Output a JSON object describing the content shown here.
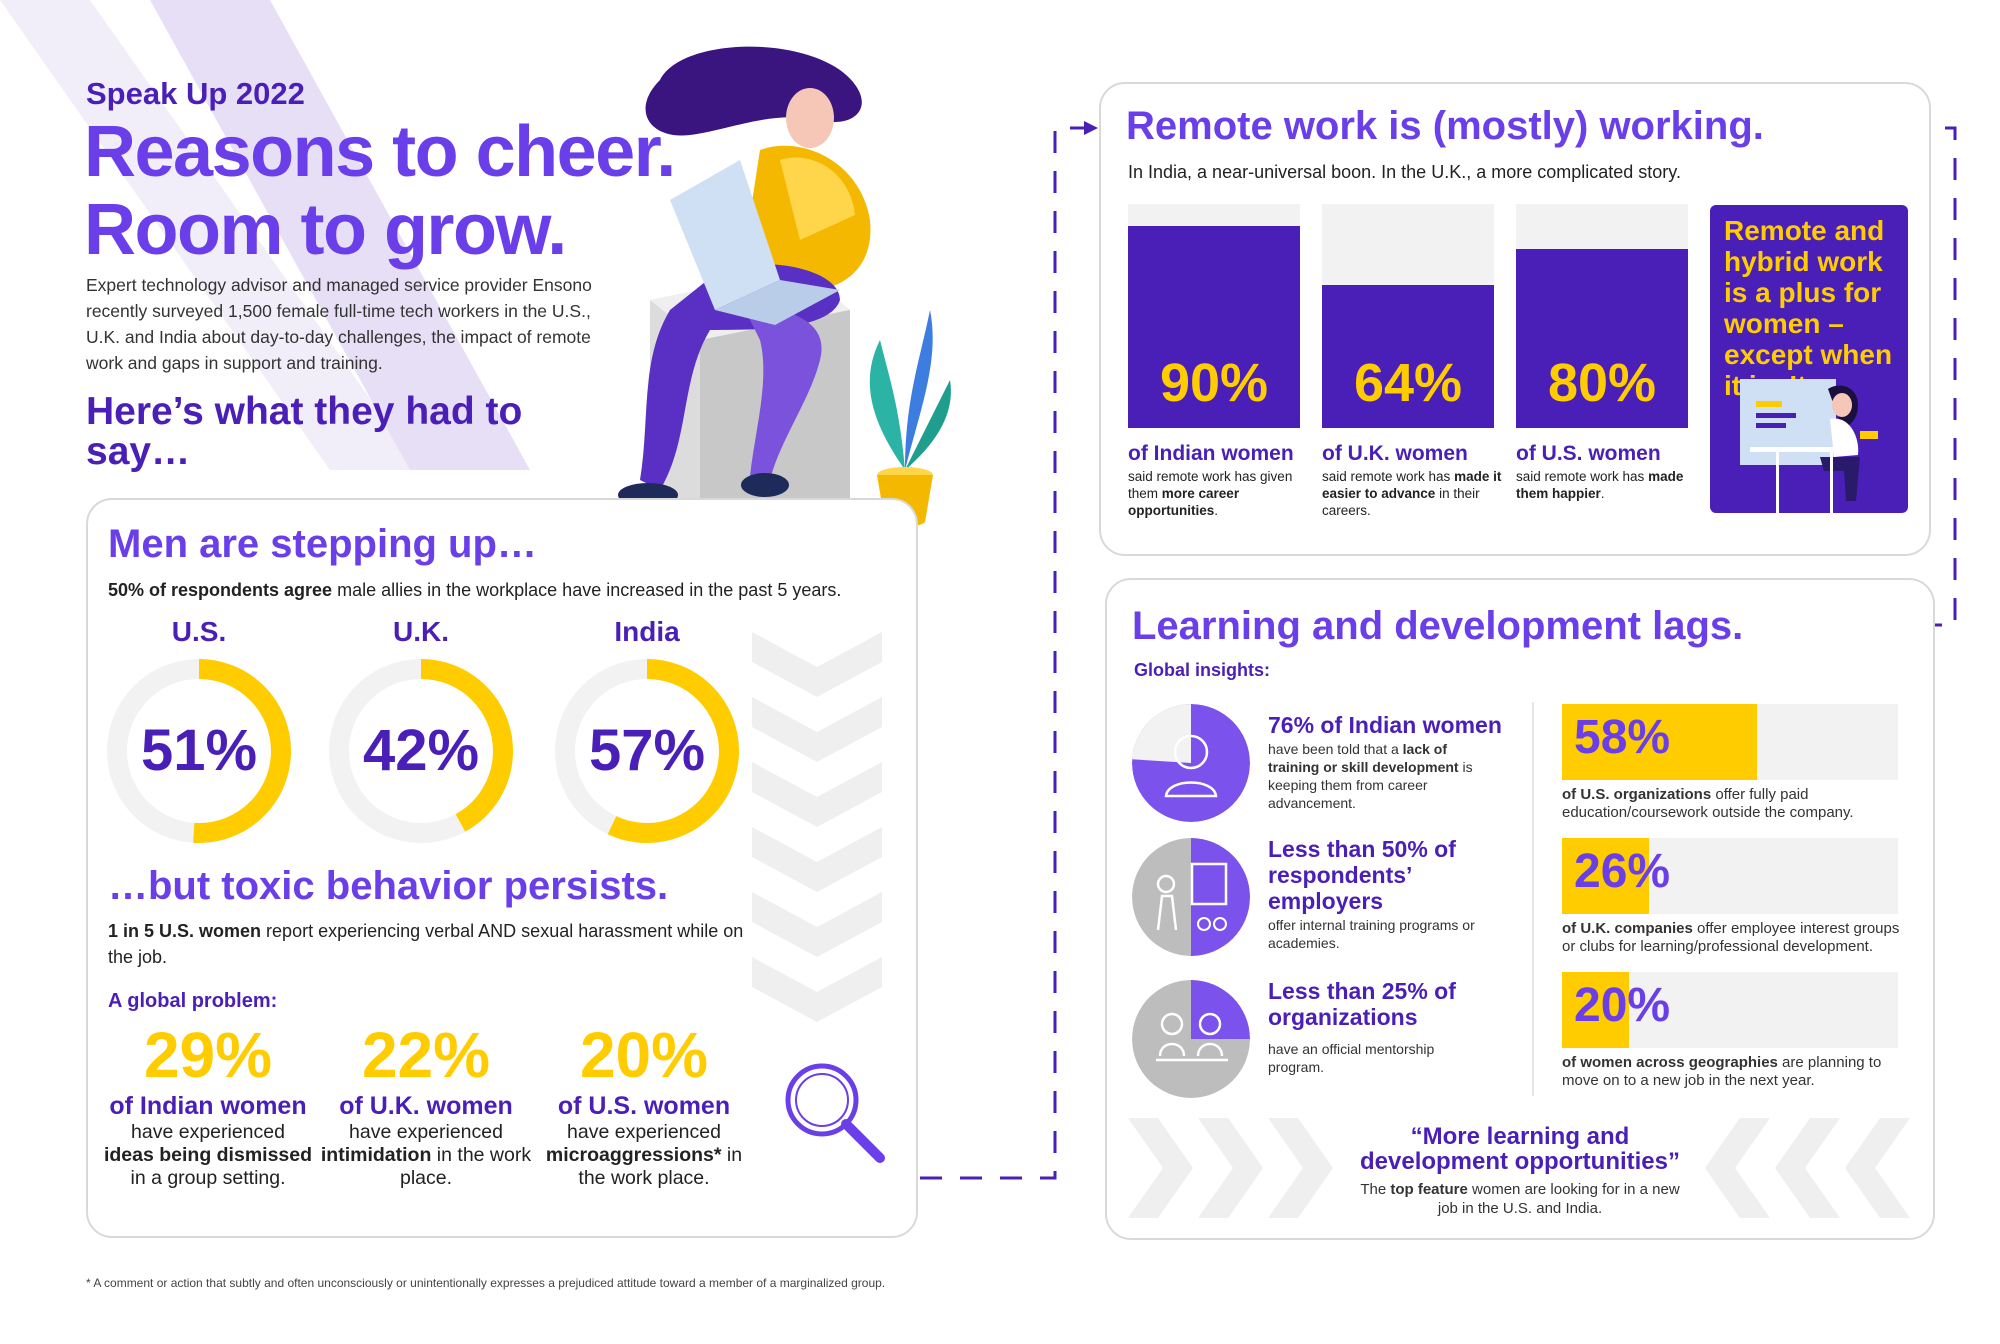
{
  "header": {
    "eyebrow": "Speak Up 2022",
    "headline_1": "Reasons to cheer.",
    "headline_2": "Room to grow.",
    "intro": "Expert technology advisor and managed service provider Ensono recently surveyed 1,500 female full-time tech workers in the U.S., U.K. and India about day-to-day challenges, the impact of remote work and gaps in support and training.",
    "subhead": "Here’s what they had to say…"
  },
  "men": {
    "title": "Men are stepping up…",
    "lead_bold": "50% of respondents agree",
    "lead_rest": " male allies in the workplace have increased in the past 5 years.",
    "donuts": [
      {
        "label": "U.S.",
        "value": "51%",
        "fraction": 0.51
      },
      {
        "label": "U.K.",
        "value": "42%",
        "fraction": 0.42
      },
      {
        "label": "India",
        "value": "57%",
        "fraction": 0.57
      }
    ]
  },
  "toxic": {
    "title": "…but toxic behavior persists.",
    "lead_bold": "1 in 5 U.S. women",
    "lead_rest": " report experiencing verbal AND sexual harassment while on the job.",
    "global_label": "A global problem:",
    "stats": [
      {
        "value": "29%",
        "who": "of Indian women",
        "pre": "have experienced",
        "bold": "ideas being dismissed",
        "post": "in a group setting."
      },
      {
        "value": "22%",
        "who": "of U.K. women",
        "pre": "have experienced",
        "bold": "intimidation",
        "post": " in the work place."
      },
      {
        "value": "20%",
        "who": "of U.S. women",
        "pre": "have experienced",
        "bold": "microaggressions*",
        "post": " in the work place."
      }
    ]
  },
  "remote": {
    "title": "Remote work is (mostly) working.",
    "sub": "In India, a near-universal boon. In the U.K., a more complicated story.",
    "bars": [
      {
        "value": "90%",
        "fraction": 0.9,
        "who": "of Indian women",
        "pre": "said remote work has given them ",
        "bold": "more career opportunities",
        "post": "."
      },
      {
        "value": "64%",
        "fraction": 0.64,
        "who": "of U.K. women",
        "pre": "said remote work has ",
        "bold": "made it easier to advance",
        "post": " in their careers."
      },
      {
        "value": "80%",
        "fraction": 0.8,
        "who": "of U.S. women",
        "pre": "said remote work has ",
        "bold": "made them happier",
        "post": "."
      }
    ],
    "callout": "Remote and hybrid work is a plus for women – except when it isn’t."
  },
  "learning": {
    "title": "Learning and development lags.",
    "global_label": "Global insights:",
    "insights": [
      {
        "head": "76% of Indian women",
        "pre": "have been told that a ",
        "bold": "lack of training or skill development",
        "post": " is keeping them from career advancement.",
        "fraction": 0.76
      },
      {
        "head": "Less than 50% of respondents’ employers",
        "pre": "offer internal training programs or academies.",
        "bold": "",
        "post": "",
        "fraction": 0.5
      },
      {
        "head": "Less than 25% of organizations",
        "pre": "have an official mentorship program.",
        "bold": "",
        "post": "",
        "fraction": 0.25
      }
    ],
    "bars": [
      {
        "value": "58%",
        "fraction": 0.58,
        "bold": "of U.S. organizations",
        "rest": " offer fully paid education/coursework outside the company."
      },
      {
        "value": "26%",
        "fraction": 0.26,
        "bold": "of U.K. companies",
        "rest": " offer employee interest groups or clubs for learning/professional development."
      },
      {
        "value": "20%",
        "fraction": 0.2,
        "bold": "of women across geographies",
        "rest": " are planning to move on to a new job in the next year."
      }
    ],
    "quote": "“More learning and development opportunities”",
    "quote_pre": "The ",
    "quote_bold": "top feature",
    "quote_post": " women are looking for in a new job in the U.S. and India."
  },
  "footnote": "* A comment or action that subtly and often unconsciously or unintentionally expresses a prejudiced attitude toward a member of a marginalized group.",
  "colors": {
    "purple": "#6a3ee8",
    "dark_purple": "#4a1fb8",
    "yellow": "#ffcc00",
    "track": "#f2f2f2"
  }
}
